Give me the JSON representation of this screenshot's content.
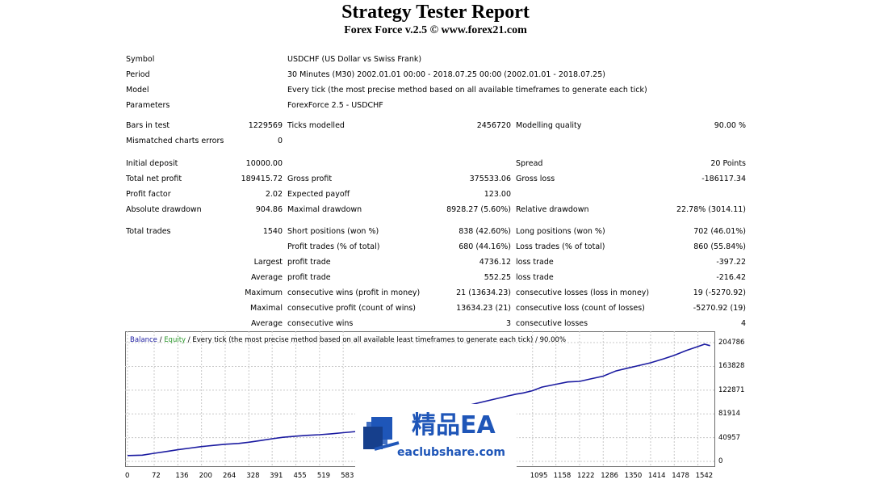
{
  "header": {
    "title": "Strategy Tester Report",
    "subtitle": "Forex Force v.2.5 © www.forex21.com"
  },
  "info": {
    "symbol_label": "Symbol",
    "symbol_value": "USDCHF (US Dollar vs Swiss Frank)",
    "period_label": "Period",
    "period_value": "30 Minutes (M30) 2002.01.01 00:00 - 2018.07.25 00:00 (2002.01.01 - 2018.07.25)",
    "model_label": "Model",
    "model_value": "Every tick (the most precise method based on all available timeframes to generate each tick)",
    "parameters_label": "Parameters",
    "parameters_value": "ForexForce 2.5 - USDCHF"
  },
  "stats": {
    "bars_label": "Bars in test",
    "bars_value": "1229569",
    "ticks_label": "Ticks modelled",
    "ticks_value": "2456720",
    "quality_label": "Modelling quality",
    "quality_value": "90.00 %",
    "mismatch_label": "Mismatched charts errors",
    "mismatch_value": "0",
    "deposit_label": "Initial deposit",
    "deposit_value": "10000.00",
    "spread_label": "Spread",
    "spread_value": "20 Points",
    "netprofit_label": "Total net profit",
    "netprofit_value": "189415.72",
    "grossprofit_label": "Gross profit",
    "grossprofit_value": "375533.06",
    "grossloss_label": "Gross loss",
    "grossloss_value": "-186117.34",
    "pf_label": "Profit factor",
    "pf_value": "2.02",
    "payoff_label": "Expected payoff",
    "payoff_value": "123.00",
    "absdd_label": "Absolute drawdown",
    "absdd_value": "904.86",
    "maxdd_label": "Maximal drawdown",
    "maxdd_value": "8928.27 (5.60%)",
    "reldd_label": "Relative drawdown",
    "reldd_value": "22.78% (3014.11)",
    "trades_label": "Total trades",
    "trades_value": "1540",
    "short_label": "Short positions (won %)",
    "short_value": "838 (42.60%)",
    "long_label": "Long positions (won %)",
    "long_value": "702 (46.01%)",
    "ptrades_label": "Profit trades (% of total)",
    "ptrades_value": "680 (44.16%)",
    "ltrades_label": "Loss trades (% of total)",
    "ltrades_value": "860 (55.84%)",
    "largest_label": "Largest",
    "largest_profit_label": "profit trade",
    "largest_profit_value": "4736.12",
    "largest_loss_label": "loss trade",
    "largest_loss_value": "-397.22",
    "average_label": "Average",
    "average_profit_label": "profit trade",
    "average_profit_value": "552.25",
    "average_loss_label": "loss trade",
    "average_loss_value": "-216.42",
    "maximum_label": "Maximum",
    "max_wins_label": "consecutive wins (profit in money)",
    "max_wins_value": "21 (13634.23)",
    "max_losses_label": "consecutive losses (loss in money)",
    "max_losses_value": "19 (-5270.92)",
    "maximal_label": "Maximal",
    "maximal_profit_label": "consecutive profit (count of wins)",
    "maximal_profit_value": "13634.23 (21)",
    "maximal_loss_label": "consecutive loss (count of losses)",
    "maximal_loss_value": "-5270.92 (19)",
    "avg2_label": "Average",
    "avg_wins_label": "consecutive wins",
    "avg_wins_value": "3",
    "avg_losses_label": "consecutive losses",
    "avg_losses_value": "4"
  },
  "chart": {
    "legend_balance": "Balance",
    "legend_sep1": " / ",
    "legend_equity": "Equity",
    "legend_rest": " / Every tick (the most precise method based on all available least timeframes to generate each tick) / 90.00%",
    "balance_color": "#1a1aa0",
    "equity_color": "#2f9a2f"
  },
  "chart_data": {
    "type": "line",
    "ylim": [
      0,
      216000
    ],
    "xlim": [
      0,
      1580
    ],
    "yticks": [
      "204786",
      "163828",
      "122871",
      "81914",
      "40957",
      "0"
    ],
    "ytick_values": [
      204786,
      163828,
      122871,
      81914,
      40957,
      0
    ],
    "xticks": [
      "0",
      "72",
      "136",
      "200",
      "264",
      "328",
      "391",
      "455",
      "519",
      "583",
      "1095",
      "1158",
      "1222",
      "1286",
      "1350",
      "1414",
      "1478",
      "1542"
    ],
    "xtick_values": [
      0,
      72,
      136,
      200,
      264,
      328,
      391,
      455,
      519,
      583,
      1095,
      1158,
      1222,
      1286,
      1350,
      1414,
      1478,
      1542
    ],
    "grid": true,
    "series": [
      {
        "name": "Balance",
        "x": [
          0,
          40,
          72,
          110,
          136,
          170,
          200,
          230,
          264,
          300,
          328,
          360,
          391,
          420,
          455,
          490,
          519,
          550,
          583,
          620,
          1030,
          1050,
          1070,
          1095,
          1120,
          1158,
          1190,
          1222,
          1250,
          1286,
          1320,
          1350,
          1380,
          1414,
          1450,
          1478,
          1510,
          1542,
          1560,
          1575
        ],
        "y": [
          10000,
          10800,
          14000,
          17500,
          20000,
          23000,
          25500,
          27500,
          29500,
          31000,
          33000,
          36000,
          39000,
          41500,
          43500,
          45000,
          46000,
          47500,
          49500,
          51500,
          113000,
          116000,
          118000,
          122000,
          128000,
          133000,
          137000,
          138000,
          142000,
          147000,
          156000,
          160500,
          165000,
          170000,
          177000,
          183000,
          191000,
          198000,
          202000,
          199500
        ]
      }
    ]
  },
  "watermark": {
    "text_cn": "精品EA",
    "url": "eaclubshare.com"
  }
}
